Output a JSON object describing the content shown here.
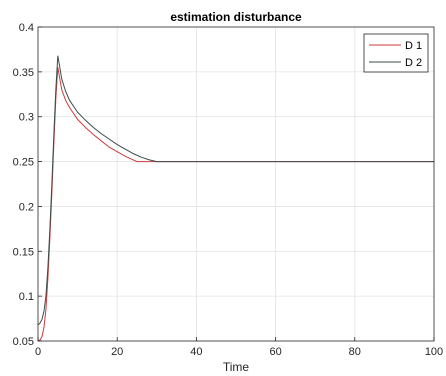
{
  "chart_data": {
    "type": "line",
    "title": "estimation disturbance",
    "xlabel": "Time",
    "ylabel": "",
    "xlim": [
      0,
      100
    ],
    "ylim": [
      0.05,
      0.4
    ],
    "xticks": [
      0,
      20,
      40,
      60,
      80,
      100
    ],
    "yticks": [
      0.05,
      0.1,
      0.15,
      0.2,
      0.25,
      0.3,
      0.35,
      0.4
    ],
    "xtick_labels": [
      "0",
      "20",
      "40",
      "60",
      "80",
      "100"
    ],
    "ytick_labels": [
      "0.05",
      "0.1",
      "0.15",
      "0.2",
      "0.25",
      "0.3",
      "0.35",
      "0.4"
    ],
    "grid": true,
    "legend_position": "top-right",
    "series": [
      {
        "name": "D 1",
        "color": "#d03a3a",
        "x": [
          0,
          0.5,
          1,
          1.5,
          2,
          2.5,
          3,
          3.5,
          4,
          4.5,
          5,
          6,
          7,
          8,
          10,
          12,
          14,
          16,
          18,
          20,
          22,
          24,
          25,
          26,
          28,
          30,
          40,
          60,
          80,
          100
        ],
        "y": [
          0.05,
          0.051,
          0.055,
          0.065,
          0.085,
          0.12,
          0.165,
          0.215,
          0.27,
          0.32,
          0.355,
          0.33,
          0.318,
          0.31,
          0.297,
          0.288,
          0.28,
          0.273,
          0.266,
          0.261,
          0.256,
          0.252,
          0.25,
          0.25,
          0.25,
          0.25,
          0.25,
          0.25,
          0.25,
          0.25
        ]
      },
      {
        "name": "D 2",
        "color": "#3c4b4b",
        "x": [
          0,
          0.5,
          1,
          1.5,
          2,
          2.5,
          3,
          3.5,
          4,
          4.5,
          5,
          6,
          7,
          8,
          10,
          12,
          14,
          16,
          18,
          20,
          22,
          24,
          26,
          28,
          30,
          40,
          60,
          80,
          100
        ],
        "y": [
          0.068,
          0.07,
          0.074,
          0.083,
          0.1,
          0.132,
          0.175,
          0.225,
          0.28,
          0.33,
          0.368,
          0.342,
          0.328,
          0.318,
          0.305,
          0.296,
          0.288,
          0.281,
          0.275,
          0.269,
          0.264,
          0.259,
          0.255,
          0.252,
          0.25,
          0.25,
          0.25,
          0.25,
          0.25
        ]
      }
    ]
  }
}
